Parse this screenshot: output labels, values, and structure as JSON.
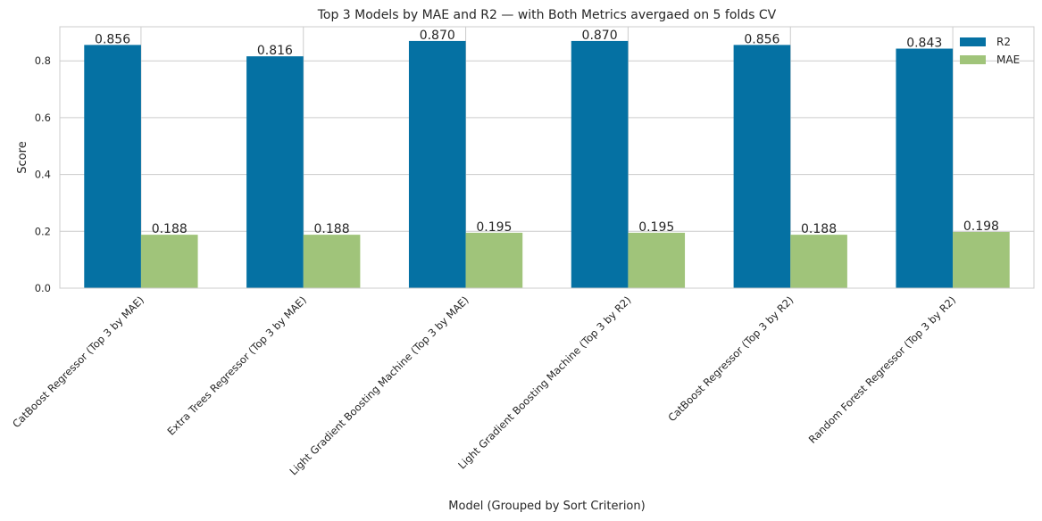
{
  "chart_data": {
    "type": "bar",
    "title": "Top 3 Models by MAE and R2 — with Both Metrics avergaed on 5 folds CV",
    "xlabel": "Model (Grouped by Sort Criterion)",
    "ylabel": "Score",
    "ylim": [
      0,
      0.92
    ],
    "yticks": [
      0.0,
      0.2,
      0.4,
      0.6,
      0.8
    ],
    "ytick_labels": [
      "0.0",
      "0.2",
      "0.4",
      "0.6",
      "0.8"
    ],
    "grid": true,
    "legend_position": "top-right",
    "categories": [
      "CatBoost Regressor (Top 3 by MAE)",
      "Extra Trees Regressor (Top 3 by MAE)",
      "Light Gradient Boosting Machine (Top 3 by MAE)",
      "Light Gradient Boosting Machine (Top 3 by R2)",
      "CatBoost Regressor (Top 3 by R2)",
      "Random Forest Regressor (Top 3 by R2)"
    ],
    "series": [
      {
        "name": "R2",
        "color": "#0571a3",
        "values": [
          0.856,
          0.816,
          0.87,
          0.87,
          0.856,
          0.843
        ],
        "labels": [
          "0.856",
          "0.816",
          "0.870",
          "0.870",
          "0.856",
          "0.843"
        ]
      },
      {
        "name": "MAE",
        "color": "#a0c47a",
        "values": [
          0.188,
          0.188,
          0.195,
          0.195,
          0.188,
          0.198
        ],
        "labels": [
          "0.188",
          "0.188",
          "0.195",
          "0.195",
          "0.188",
          "0.198"
        ]
      }
    ]
  }
}
